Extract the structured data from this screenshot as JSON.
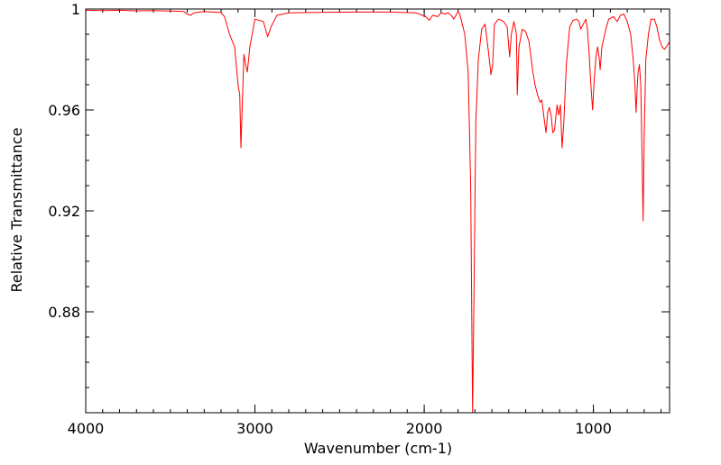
{
  "chart_data": {
    "type": "line",
    "title": "",
    "xlabel": "Wavenumber (cm-1)",
    "ylabel": "Relative Transmittance",
    "xlim": [
      4000,
      550
    ],
    "ylim": [
      0.84,
      1.0
    ],
    "x_reversed": true,
    "grid": false,
    "legend": "none",
    "x_ticks": [
      {
        "value": 4000,
        "label": "4000"
      },
      {
        "value": 3000,
        "label": "3000"
      },
      {
        "value": 2000,
        "label": "2000"
      },
      {
        "value": 1000,
        "label": "1000"
      }
    ],
    "y_ticks": [
      {
        "value": 1.0,
        "label": "1"
      },
      {
        "value": 0.96,
        "label": "0.96"
      },
      {
        "value": 0.92,
        "label": "0.92"
      },
      {
        "value": 0.88,
        "label": "0.88"
      }
    ],
    "series": [
      {
        "color": "#ff0000",
        "points": [
          [
            4000,
            0.9995
          ],
          [
            3900,
            0.9994
          ],
          [
            3800,
            0.9995
          ],
          [
            3700,
            0.9993
          ],
          [
            3600,
            0.9994
          ],
          [
            3500,
            0.9992
          ],
          [
            3420,
            0.999
          ],
          [
            3400,
            0.998
          ],
          [
            3380,
            0.9975
          ],
          [
            3360,
            0.9985
          ],
          [
            3300,
            0.999
          ],
          [
            3250,
            0.9988
          ],
          [
            3200,
            0.9986
          ],
          [
            3180,
            0.997
          ],
          [
            3150,
            0.99
          ],
          [
            3120,
            0.985
          ],
          [
            3100,
            0.97
          ],
          [
            3090,
            0.966
          ],
          [
            3083,
            0.945
          ],
          [
            3075,
            0.962
          ],
          [
            3065,
            0.982
          ],
          [
            3055,
            0.978
          ],
          [
            3045,
            0.975
          ],
          [
            3030,
            0.985
          ],
          [
            3000,
            0.996
          ],
          [
            2950,
            0.995
          ],
          [
            2925,
            0.989
          ],
          [
            2905,
            0.993
          ],
          [
            2870,
            0.9975
          ],
          [
            2800,
            0.9985
          ],
          [
            2600,
            0.9987
          ],
          [
            2400,
            0.9988
          ],
          [
            2200,
            0.9988
          ],
          [
            2050,
            0.9985
          ],
          [
            1990,
            0.997
          ],
          [
            1970,
            0.9955
          ],
          [
            1950,
            0.9975
          ],
          [
            1920,
            0.997
          ],
          [
            1900,
            0.9985
          ],
          [
            1880,
            0.998
          ],
          [
            1860,
            0.9985
          ],
          [
            1840,
            0.9975
          ],
          [
            1825,
            0.996
          ],
          [
            1800,
            0.999
          ],
          [
            1790,
            0.998
          ],
          [
            1760,
            0.99
          ],
          [
            1740,
            0.975
          ],
          [
            1725,
            0.93
          ],
          [
            1714,
            0.84
          ],
          [
            1706,
            0.885
          ],
          [
            1695,
            0.955
          ],
          [
            1680,
            0.98
          ],
          [
            1660,
            0.992
          ],
          [
            1640,
            0.994
          ],
          [
            1620,
            0.983
          ],
          [
            1605,
            0.974
          ],
          [
            1595,
            0.978
          ],
          [
            1585,
            0.994
          ],
          [
            1560,
            0.996
          ],
          [
            1530,
            0.995
          ],
          [
            1510,
            0.993
          ],
          [
            1495,
            0.981
          ],
          [
            1485,
            0.99
          ],
          [
            1470,
            0.995
          ],
          [
            1455,
            0.99
          ],
          [
            1450,
            0.966
          ],
          [
            1440,
            0.985
          ],
          [
            1420,
            0.992
          ],
          [
            1400,
            0.991
          ],
          [
            1380,
            0.987
          ],
          [
            1360,
            0.976
          ],
          [
            1345,
            0.97
          ],
          [
            1330,
            0.966
          ],
          [
            1315,
            0.963
          ],
          [
            1305,
            0.964
          ],
          [
            1290,
            0.956
          ],
          [
            1280,
            0.951
          ],
          [
            1270,
            0.959
          ],
          [
            1260,
            0.961
          ],
          [
            1250,
            0.958
          ],
          [
            1240,
            0.951
          ],
          [
            1230,
            0.952
          ],
          [
            1215,
            0.962
          ],
          [
            1205,
            0.958
          ],
          [
            1195,
            0.962
          ],
          [
            1185,
            0.945
          ],
          [
            1175,
            0.955
          ],
          [
            1160,
            0.978
          ],
          [
            1140,
            0.993
          ],
          [
            1120,
            0.9955
          ],
          [
            1100,
            0.996
          ],
          [
            1085,
            0.995
          ],
          [
            1075,
            0.992
          ],
          [
            1060,
            0.994
          ],
          [
            1045,
            0.996
          ],
          [
            1035,
            0.992
          ],
          [
            1025,
            0.982
          ],
          [
            1015,
            0.97
          ],
          [
            1005,
            0.96
          ],
          [
            995,
            0.972
          ],
          [
            985,
            0.981
          ],
          [
            975,
            0.985
          ],
          [
            965,
            0.98
          ],
          [
            960,
            0.976
          ],
          [
            950,
            0.985
          ],
          [
            930,
            0.991
          ],
          [
            910,
            0.996
          ],
          [
            880,
            0.997
          ],
          [
            860,
            0.995
          ],
          [
            840,
            0.9975
          ],
          [
            820,
            0.998
          ],
          [
            800,
            0.995
          ],
          [
            780,
            0.99
          ],
          [
            765,
            0.98
          ],
          [
            755,
            0.97
          ],
          [
            748,
            0.959
          ],
          [
            742,
            0.968
          ],
          [
            736,
            0.975
          ],
          [
            728,
            0.978
          ],
          [
            720,
            0.97
          ],
          [
            712,
            0.94
          ],
          [
            706,
            0.916
          ],
          [
            700,
            0.95
          ],
          [
            690,
            0.98
          ],
          [
            675,
            0.99
          ],
          [
            660,
            0.996
          ],
          [
            640,
            0.996
          ],
          [
            625,
            0.993
          ],
          [
            610,
            0.988
          ],
          [
            595,
            0.985
          ],
          [
            580,
            0.984
          ],
          [
            565,
            0.9855
          ],
          [
            550,
            0.987
          ]
        ]
      }
    ]
  }
}
